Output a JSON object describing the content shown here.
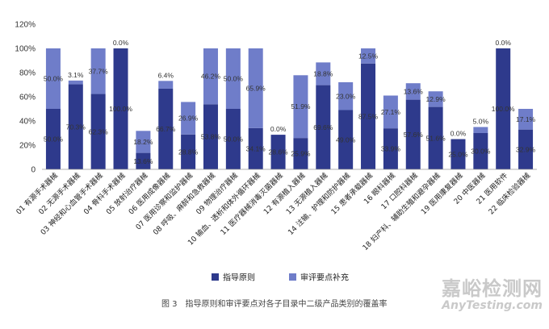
{
  "chart_data": {
    "type": "bar",
    "stacked": true,
    "categories": [
      "01 有源手术器械",
      "02 无源手术器械",
      "03 神经和心血管手术器械",
      "04 骨科手术器械",
      "05 放射治疗器械",
      "06 医用成像器械",
      "07 医用诊察和监护器械",
      "08 呼吸、麻醉和急救器械",
      "09 物理治疗器械",
      "10 输血、透析和体外循环器械",
      "11 医疗器械消毒灭菌器械",
      "12 有源植入器械",
      "13 无源植入器械",
      "14 注输、护理和防护器械",
      "15 患者承载器械",
      "16 眼科器械",
      "17 口腔科器械",
      "18 妇产科、辅助生殖和避孕器械",
      "19 医用康复器械",
      "20 中医器械",
      "21 医用软件",
      "22 临床检验器械"
    ],
    "series": [
      {
        "name": "指导原则",
        "color": "#2e3a8c",
        "values": [
          50.0,
          70.3,
          62.3,
          100.0,
          13.6,
          66.7,
          28.8,
          53.8,
          50.0,
          34.1,
          28.6,
          25.9,
          69.6,
          49.0,
          87.5,
          33.9,
          57.6,
          51.6,
          25.0,
          30.0,
          100.0,
          32.9
        ]
      },
      {
        "name": "审评要点补充",
        "color": "#6f7dc9",
        "values": [
          50.0,
          3.1,
          37.7,
          0.0,
          18.2,
          6.4,
          26.9,
          46.2,
          50.0,
          65.9,
          0.0,
          51.9,
          18.8,
          23.0,
          12.5,
          27.1,
          13.6,
          12.9,
          0.0,
          5.0,
          0.0,
          17.1
        ]
      }
    ],
    "data_labels": {
      "指导原则": [
        "50.0%",
        "70.3%",
        "62.3%",
        "100.0%",
        "13.6%",
        "66.7%",
        "28.8%",
        "53.8%",
        "50.0%",
        "34.1%",
        "28.6%",
        "25.9%",
        "69.6%",
        "49.0%",
        "87.5%",
        "33.9%",
        "57.6%",
        "51.6%",
        "25.0%",
        "30.0%",
        "100.0%",
        "32.9%"
      ],
      "审评要点补充": [
        "50.0%",
        "3.1%",
        "37.7%",
        "0.0%",
        "18.2%",
        "6.4%",
        "26.9%",
        "46.2%",
        "50.0%",
        "65.9%",
        "0.0%",
        "51.9%",
        "18.8%",
        "23.0%",
        "12.5%",
        "27.1%",
        "13.6%",
        "12.9%",
        "0.0%",
        "5.0%",
        "0.0%",
        "17.1%"
      ]
    },
    "yticks": [
      "0",
      "20%",
      "40%",
      "60%",
      "80%",
      "100%",
      "120%"
    ],
    "ylim": [
      0,
      120
    ],
    "grid": false,
    "legend_position": "bottom-center"
  },
  "caption": {
    "figure_no": "图 3",
    "text": "指导原则和审评要点对各子目录中二级产品类别的覆盖率"
  },
  "watermark": {
    "cn": "嘉峪检测网",
    "en": "AnyTesting.com"
  }
}
